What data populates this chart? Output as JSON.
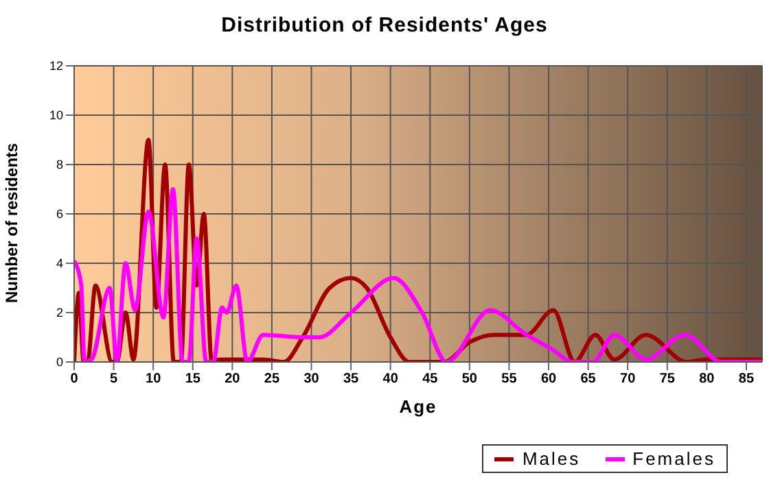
{
  "chart_data": {
    "type": "line",
    "title": "Distribution of Residents' Ages",
    "xlabel": "Age",
    "ylabel": "Number of residents",
    "xlim": [
      0,
      87
    ],
    "xticks": [
      0,
      5,
      10,
      15,
      20,
      25,
      30,
      35,
      40,
      45,
      50,
      55,
      60,
      65,
      70,
      75,
      80,
      85
    ],
    "ylim": [
      0,
      12
    ],
    "yticks": [
      0,
      2,
      4,
      6,
      8,
      10,
      12
    ],
    "grid": true,
    "legend": "bottom right",
    "marker": "none",
    "line_style": "solid",
    "series": [
      {
        "name": "Males",
        "color": "#a00000",
        "x": [
          0,
          0.6,
          1.2,
          1.7,
          2.7,
          4.8,
          5.4,
          6.5,
          7.5,
          9.4,
          10.4,
          11.5,
          12.6,
          13.5,
          14.5,
          15.5,
          16.4,
          17.4,
          18.4,
          23.9,
          26.5,
          28.9,
          32.3,
          35,
          37,
          40,
          42.4,
          46.8,
          50,
          53,
          57.2,
          60.6,
          63.3,
          65.9,
          68.3,
          72.3,
          77.5,
          80,
          87
        ],
        "values": [
          0,
          2.8,
          0,
          0,
          3.1,
          0,
          0,
          2,
          0.1,
          9,
          2.2,
          8,
          0,
          0,
          8,
          3.1,
          6,
          0,
          0.1,
          0.1,
          0,
          1,
          3,
          3.4,
          3,
          1,
          0,
          0,
          0.8,
          1.1,
          1.1,
          2.1,
          0,
          1.1,
          0.1,
          1.1,
          0,
          0.1,
          0.1
        ]
      },
      {
        "name": "Females",
        "color": "#ff00ff",
        "x": [
          0,
          0.9,
          1.3,
          2.2,
          4.5,
          5.4,
          6.5,
          7.7,
          9.4,
          11.3,
          12.5,
          13.7,
          14.5,
          15.5,
          16.7,
          17.6,
          18.7,
          19.3,
          20.5,
          21.9,
          23.9,
          28.9,
          31,
          35,
          40.4,
          44,
          47.1,
          52.6,
          57.2,
          60.5,
          63,
          65.6,
          68.3,
          72.3,
          77.2,
          81.9,
          87
        ],
        "values": [
          4.1,
          3.1,
          0,
          0.1,
          3,
          0,
          4,
          2.1,
          6.1,
          1.8,
          7,
          0,
          0,
          5,
          0,
          0,
          2.2,
          2,
          3.1,
          0,
          1.1,
          1,
          1,
          2,
          3.4,
          2,
          0,
          2.1,
          1.1,
          0.5,
          0,
          0,
          1.1,
          0.1,
          1.1,
          0,
          0
        ]
      }
    ]
  }
}
